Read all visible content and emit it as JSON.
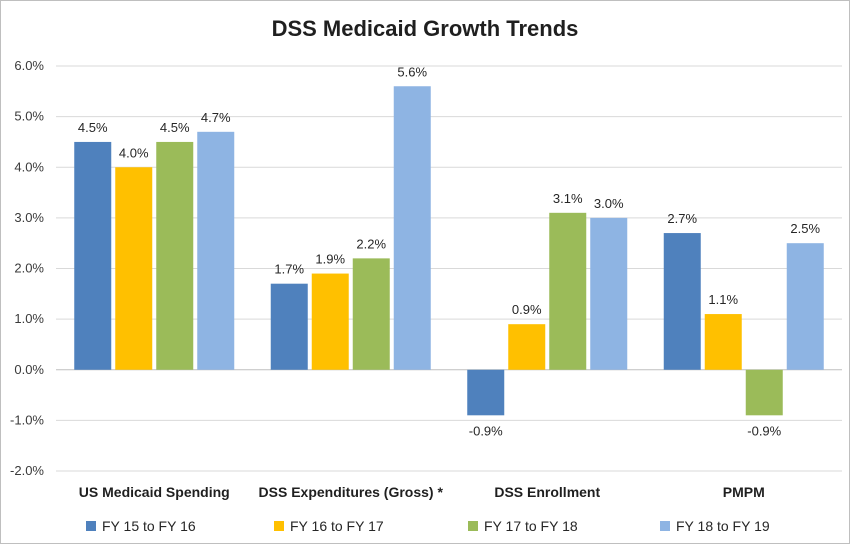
{
  "chart_data": {
    "type": "bar",
    "title": "DSS Medicaid Growth Trends",
    "xlabel": "",
    "ylabel": "",
    "ylim": [
      -2.0,
      6.0
    ],
    "yticks": [
      "6.0%",
      "5.0%",
      "4.0%",
      "3.0%",
      "2.0%",
      "1.0%",
      "0.0%",
      "-1.0%",
      "-2.0%"
    ],
    "ytick_values": [
      6,
      5,
      4,
      3,
      2,
      1,
      0,
      -1,
      -2
    ],
    "grid": true,
    "legend_position": "bottom",
    "categories": [
      "US Medicaid Spending",
      "DSS Expenditures (Gross) *",
      "DSS Enrollment",
      "PMPM"
    ],
    "series": [
      {
        "name": "FY 15 to FY 16",
        "color": "#4f81bd",
        "values": [
          4.5,
          1.7,
          -0.9,
          2.7
        ],
        "labels": [
          "4.5%",
          "1.7%",
          "-0.9%",
          "2.7%"
        ]
      },
      {
        "name": "FY 16 to FY 17",
        "color": "#ffc000",
        "values": [
          4.0,
          1.9,
          0.9,
          1.1
        ],
        "labels": [
          "4.0%",
          "1.9%",
          "0.9%",
          "1.1%"
        ]
      },
      {
        "name": "FY 17 to FY 18",
        "color": "#9bbb59",
        "values": [
          4.5,
          2.2,
          3.1,
          -0.9
        ],
        "labels": [
          "4.5%",
          "2.2%",
          "3.1%",
          "-0.9%"
        ]
      },
      {
        "name": "FY 18 to FY 19",
        "color": "#8eb4e3",
        "values": [
          4.7,
          5.6,
          3.0,
          2.5
        ],
        "labels": [
          "4.7%",
          "5.6%",
          "3.0%",
          "2.5%"
        ]
      }
    ]
  }
}
